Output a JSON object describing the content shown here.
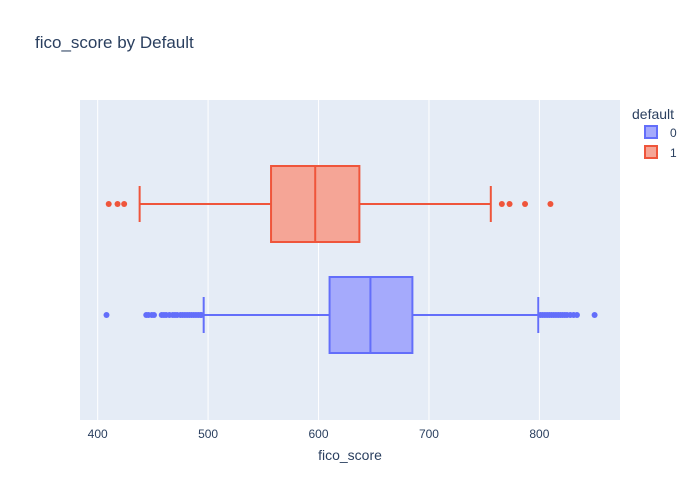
{
  "chart_data": {
    "type": "box",
    "orientation": "horizontal",
    "title": "fico_score by Default",
    "xlabel": "fico_score",
    "ylabel": "",
    "xlim": [
      384,
      873
    ],
    "x_ticks": [
      400,
      500,
      600,
      700,
      800
    ],
    "grid": true,
    "legend_title": "default",
    "legend_position": "top-right",
    "series": [
      {
        "name": "0",
        "color": "#636efa",
        "fill": "#a5aafc",
        "min_whisker": 496,
        "q1": 610,
        "median": 647,
        "q3": 685,
        "max_whisker": 799,
        "outliers": [
          408,
          444,
          446,
          449,
          451,
          458,
          460,
          462,
          465,
          468,
          470,
          472,
          475,
          477,
          479,
          481,
          483,
          485,
          487,
          489,
          491,
          493,
          494,
          801,
          803,
          805,
          807,
          809,
          811,
          813,
          815,
          817,
          819,
          821,
          823,
          825,
          828,
          831,
          834,
          850
        ]
      },
      {
        "name": "1",
        "color": "#ef553b",
        "fill": "#f5a596",
        "min_whisker": 438,
        "q1": 557,
        "median": 597,
        "q3": 637,
        "max_whisker": 756,
        "outliers": [
          410,
          418,
          424,
          766,
          773,
          787,
          810
        ]
      }
    ]
  }
}
